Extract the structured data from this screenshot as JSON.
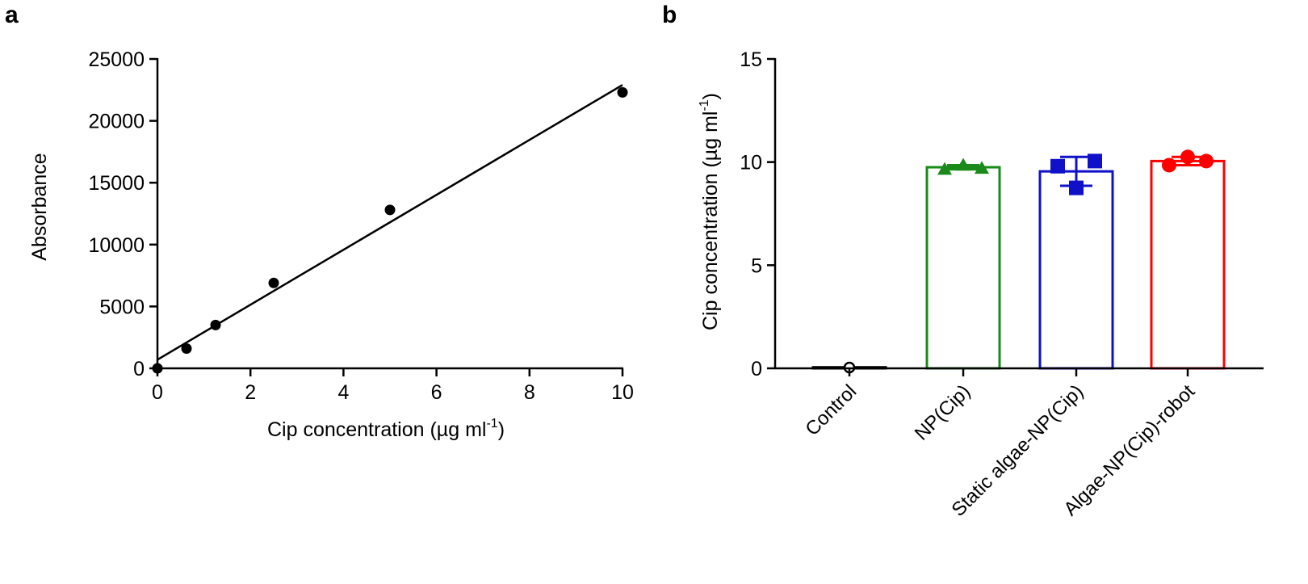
{
  "chart_data": [
    {
      "panel": "a",
      "type": "scatter",
      "xlabel": "Cip concentration (µg ml",
      "xlabel_sup": "-1",
      "xlabel_end": ")",
      "ylabel": "Absorbance",
      "xlim": [
        0,
        10
      ],
      "ylim": [
        0,
        25000
      ],
      "xticks": [
        "0",
        "2",
        "4",
        "6",
        "8",
        "10"
      ],
      "yticks": [
        "0",
        "5000",
        "10000",
        "15000",
        "20000",
        "25000"
      ],
      "grid": false,
      "points": [
        {
          "x": 0,
          "y": 0
        },
        {
          "x": 0.625,
          "y": 1600
        },
        {
          "x": 1.25,
          "y": 3500
        },
        {
          "x": 2.5,
          "y": 6900
        },
        {
          "x": 5,
          "y": 12800
        },
        {
          "x": 10,
          "y": 22300
        }
      ],
      "fit_line": {
        "x": [
          0,
          10
        ],
        "y": [
          700,
          22900
        ]
      }
    },
    {
      "panel": "b",
      "type": "bar",
      "ylabel": "Cip concentration (µg ml",
      "ylabel_sup": "-1",
      "ylabel_end": ")",
      "ylim": [
        0,
        15
      ],
      "yticks": [
        "0",
        "5",
        "10",
        "15"
      ],
      "grid": false,
      "categories": [
        "Control",
        "NP(Cip)",
        "Static algae-NP(Cip)",
        "Algae-NP(Cip)-robot"
      ],
      "colors": [
        "#000000",
        "#1a8a1a",
        "#1010c8",
        "#ff0000"
      ],
      "markers": [
        "circle-open",
        "triangle",
        "square",
        "circle"
      ],
      "means": [
        0.05,
        9.75,
        9.55,
        10.05
      ],
      "errors": [
        0.0,
        0.1,
        0.7,
        0.2
      ],
      "points": [
        [
          0.0,
          0.0,
          0.0
        ],
        [
          9.65,
          9.85,
          9.7
        ],
        [
          9.8,
          8.75,
          10.05
        ],
        [
          9.85,
          10.25,
          10.05
        ]
      ]
    }
  ]
}
